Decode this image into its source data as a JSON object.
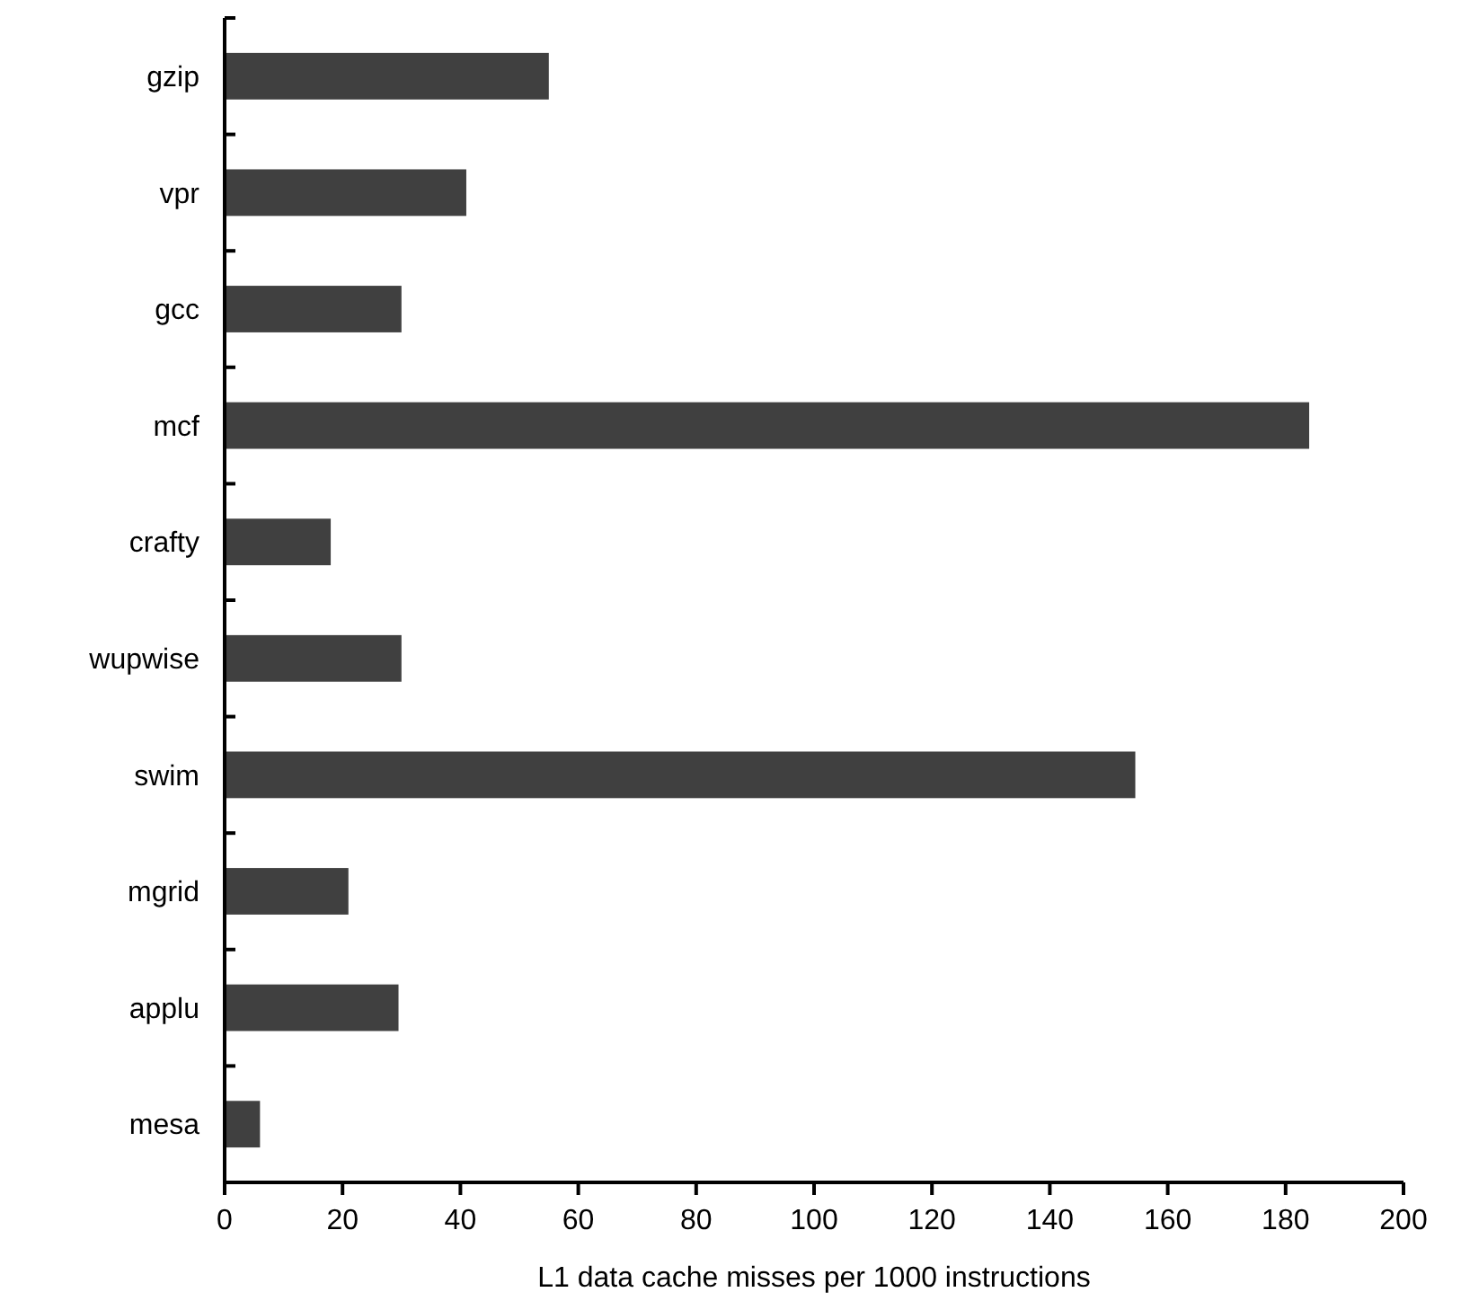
{
  "chart_data": {
    "type": "bar",
    "orientation": "horizontal",
    "xlabel": "L1 data cache misses per 1000 instructions",
    "categories": [
      "gzip",
      "vpr",
      "gcc",
      "mcf",
      "crafty",
      "wupwise",
      "swim",
      "mgrid",
      "applu",
      "mesa"
    ],
    "values": [
      55,
      41,
      30,
      184,
      18,
      30,
      154.5,
      21,
      29.5,
      6
    ],
    "color": "#404040",
    "xlim": [
      0,
      200
    ],
    "xticks": [
      0,
      20,
      40,
      60,
      80,
      100,
      120,
      140,
      160,
      180,
      200
    ],
    "grid": false
  }
}
